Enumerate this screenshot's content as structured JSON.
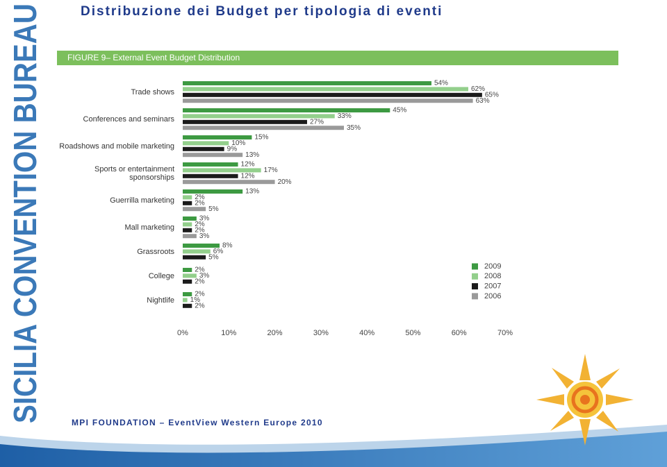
{
  "slide": {
    "title": "Distribuzione dei Budget per tipologia di eventi",
    "side_text": "SICILIA CONVENTION BUREAU",
    "footer": "MPI FOUNDATION – EventView Western Europe 2010"
  },
  "chart_data": {
    "type": "bar",
    "orientation": "horizontal",
    "title": "FIGURE 9– External Event Budget Distribution",
    "categories": [
      "Trade shows",
      "Conferences and seminars",
      "Roadshows and mobile marketing",
      "Sports or entertainment\nsponsorships",
      "Guerrilla marketing",
      "Mall marketing",
      "Grassroots",
      "College",
      "Nightlife"
    ],
    "series": [
      {
        "name": "2009",
        "color": "#3d9a42",
        "values": [
          54,
          45,
          15,
          12,
          13,
          3,
          8,
          2,
          2
        ],
        "value_labels": [
          "54%",
          "45%",
          "15%",
          "12%",
          "13%",
          "3%",
          "8%",
          "2%",
          "2%"
        ]
      },
      {
        "name": "2008",
        "color": "#93cf8c",
        "values": [
          62,
          33,
          10,
          17,
          2,
          2,
          6,
          3,
          1
        ],
        "value_labels": [
          "62%",
          "33%",
          "10%",
          "17%",
          "2%",
          "2%",
          "6%",
          "3%",
          "1%"
        ]
      },
      {
        "name": "2007",
        "color": "#1b1b1b",
        "values": [
          65,
          27,
          9,
          12,
          2,
          2,
          5,
          2,
          2
        ],
        "value_labels": [
          "65%",
          "27%",
          "9%",
          "12%",
          "2%",
          "2%",
          "5%",
          "2%",
          "2%"
        ]
      },
      {
        "name": "2006",
        "color": "#9a9a9a",
        "values": [
          63,
          35,
          13,
          20,
          5,
          3,
          null,
          null,
          null
        ],
        "value_labels": [
          "63%",
          "35%",
          "13%",
          "20%",
          "5%",
          "3%",
          null,
          null,
          null
        ]
      }
    ],
    "xlim": [
      0,
      70
    ],
    "xticks": [
      {
        "value": 0,
        "label": "0%"
      },
      {
        "value": 10,
        "label": "10%"
      },
      {
        "value": 20,
        "label": "20%"
      },
      {
        "value": 30,
        "label": "30%"
      },
      {
        "value": 40,
        "label": "40%"
      },
      {
        "value": 50,
        "label": "50%"
      },
      {
        "value": 60,
        "label": "60%"
      },
      {
        "value": 70,
        "label": "70%"
      }
    ],
    "legend": "lower-right"
  }
}
